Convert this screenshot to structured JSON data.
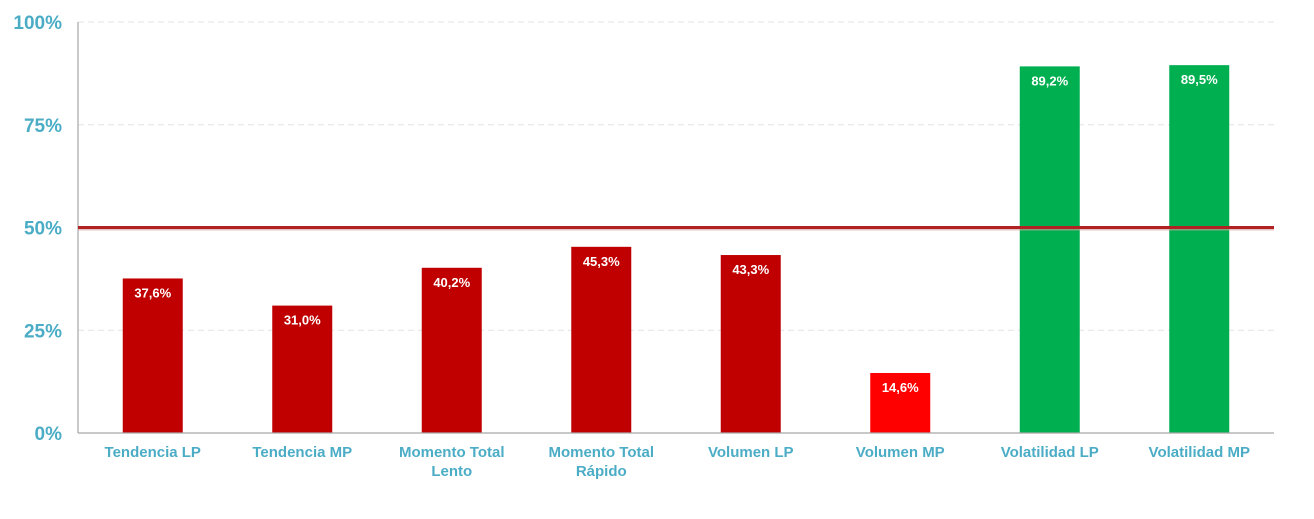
{
  "chart_data": {
    "type": "bar",
    "categories": [
      [
        "Tendencia LP"
      ],
      [
        "Tendencia MP"
      ],
      [
        "Momento Total",
        "Lento"
      ],
      [
        "Momento Total",
        "Rápido"
      ],
      [
        "Volumen LP"
      ],
      [
        "Volumen MP"
      ],
      [
        "Volatilidad LP"
      ],
      [
        "Volatilidad MP"
      ]
    ],
    "values": [
      37.6,
      31.0,
      40.2,
      45.3,
      43.3,
      14.6,
      89.2,
      89.5
    ],
    "data_labels": [
      "37,6%",
      "31,0%",
      "40,2%",
      "45,3%",
      "43,3%",
      "14,6%",
      "89,2%",
      "89,5%"
    ],
    "bar_colors": [
      "#c00000",
      "#c00000",
      "#c00000",
      "#c00000",
      "#c00000",
      "#ff0000",
      "#00b050",
      "#00b050"
    ],
    "ylim": [
      0,
      100
    ],
    "yticks": [
      {
        "value": 0,
        "label": "0%"
      },
      {
        "value": 25,
        "label": "25%"
      },
      {
        "value": 50,
        "label": "50%"
      },
      {
        "value": 75,
        "label": "75%"
      },
      {
        "value": 100,
        "label": "100%"
      }
    ],
    "reference_line": {
      "value": 50,
      "color": "#b22222"
    },
    "grid": true,
    "title": "",
    "xlabel": "",
    "ylabel": "",
    "colors": {
      "tick_text": "#4bacc6",
      "axis": "#a6a6a6",
      "grid": "#e3e3e3"
    }
  }
}
